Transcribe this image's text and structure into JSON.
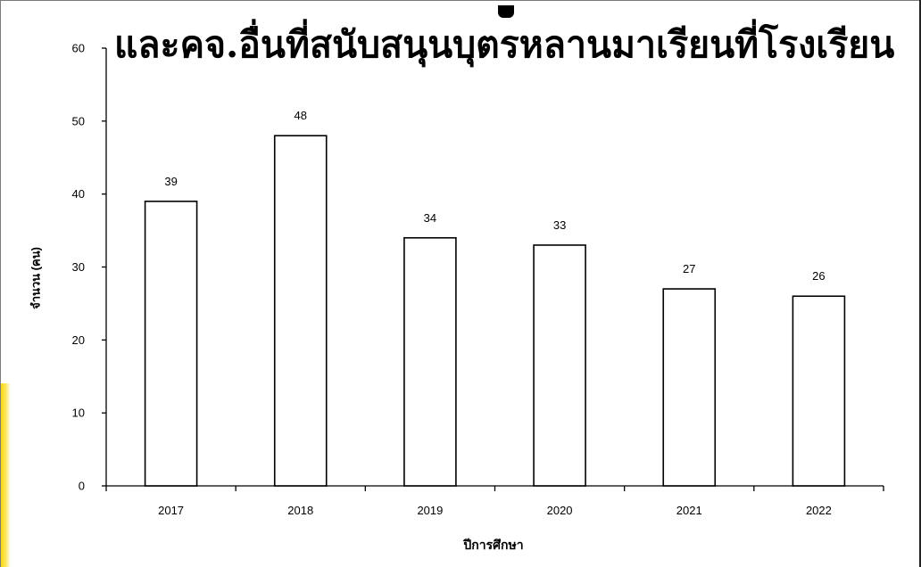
{
  "chart_data": {
    "type": "bar",
    "title": "และคจ.อื่นที่สนับสนุนบุตรหลานมาเรียนที่โรงเรียน",
    "xlabel": "ปีการศึกษา",
    "ylabel": "จำนวน (คน)",
    "categories": [
      "2017",
      "2018",
      "2019",
      "2020",
      "2021",
      "2022"
    ],
    "values": [
      39,
      48,
      34,
      33,
      27,
      26
    ],
    "data_labels": [
      "39",
      "48",
      "34",
      "33",
      "27",
      "26"
    ],
    "ylim": [
      0,
      60
    ],
    "yticks": [
      0,
      10,
      20,
      30,
      40,
      50,
      60
    ],
    "ytick_labels": [
      "0",
      "10",
      "20",
      "30",
      "40",
      "50",
      "60"
    ],
    "grid": false,
    "legend": "none",
    "bar_fill": "#ffffff",
    "bar_stroke": "#000000"
  }
}
